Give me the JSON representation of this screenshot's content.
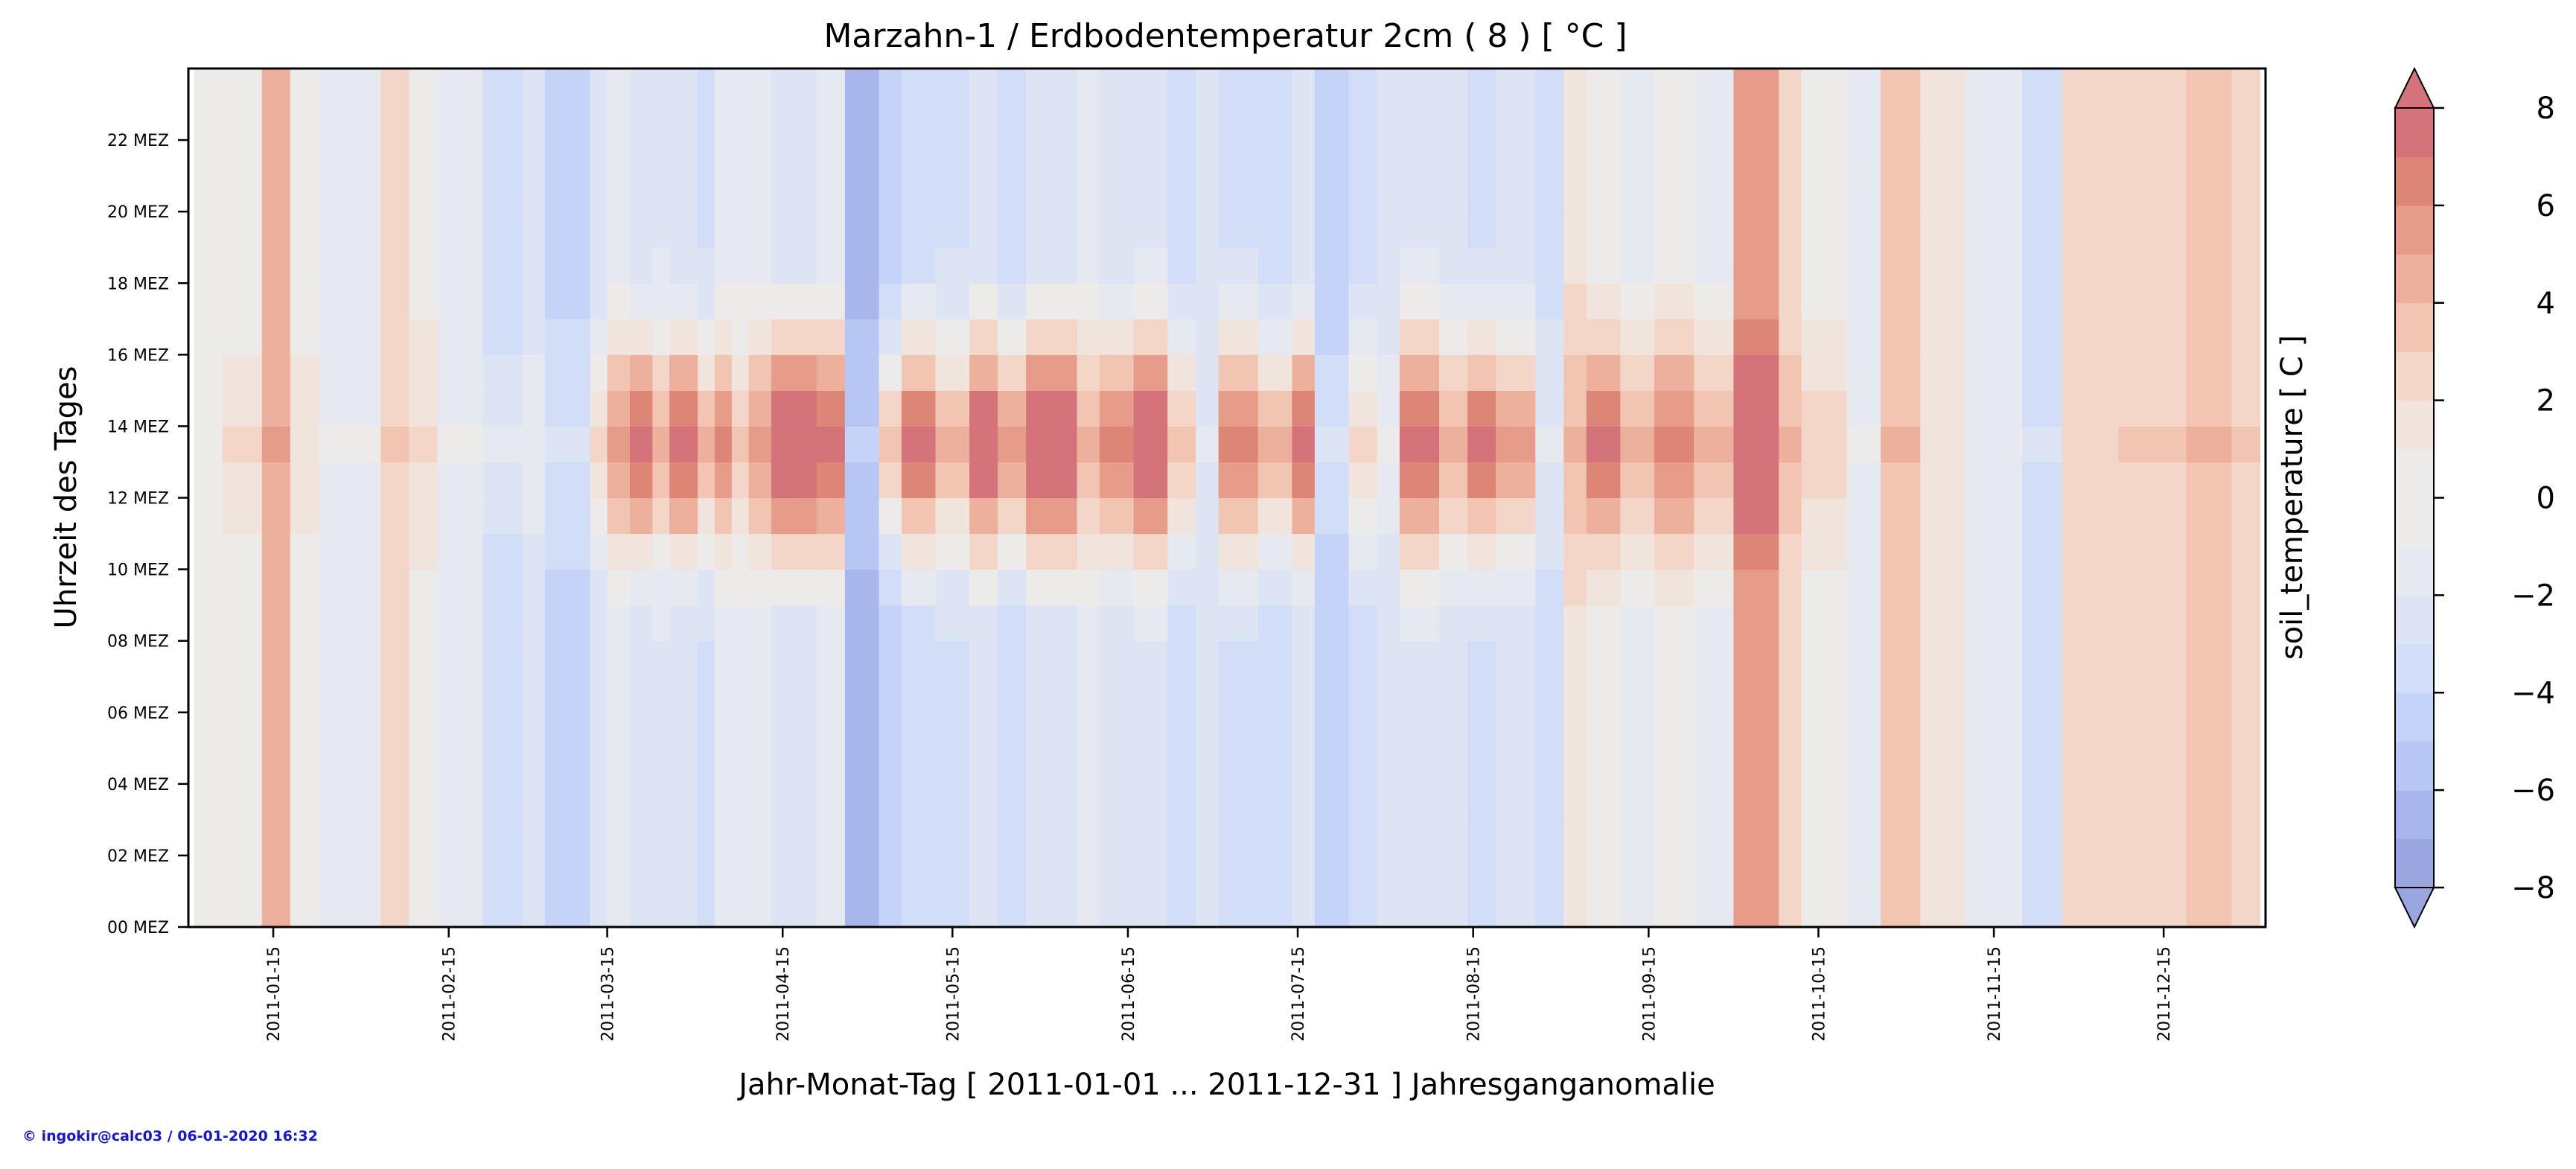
{
  "chart_data": {
    "type": "heatmap",
    "title": "Marzahn-1 / Erdbodentemperatur 2cm ( 8 ) [ °C ]",
    "xlabel": "Jahr-Monat-Tag [ 2011-01-01 ... 2011-12-31 ] Jahresganganomalie",
    "ylabel": "Uhrzeit des Tages",
    "x_ticks": [
      "2011-01-15",
      "2011-02-15",
      "2011-03-15",
      "2011-04-15",
      "2011-05-15",
      "2011-06-15",
      "2011-07-15",
      "2011-08-15",
      "2011-09-15",
      "2011-10-15",
      "2011-11-15",
      "2011-12-15"
    ],
    "x_tick_days": [
      14,
      45,
      73,
      104,
      134,
      165,
      195,
      226,
      257,
      287,
      318,
      348
    ],
    "x_range": [
      -1,
      366
    ],
    "y_ticks": [
      "00 MEZ",
      "02 MEZ",
      "04 MEZ",
      "06 MEZ",
      "08 MEZ",
      "10 MEZ",
      "12 MEZ",
      "14 MEZ",
      "16 MEZ",
      "18 MEZ",
      "20 MEZ",
      "22 MEZ"
    ],
    "y_tick_hours": [
      0,
      2,
      4,
      6,
      8,
      10,
      12,
      14,
      16,
      18,
      20,
      22
    ],
    "y_range": [
      0,
      24
    ],
    "colorbar": {
      "label": "soil_temperature [ C ]",
      "ticks": [
        "8",
        "6",
        "4",
        "2",
        "0",
        "−2",
        "−4",
        "−6",
        "−8"
      ],
      "tick_values": [
        8,
        6,
        4,
        2,
        0,
        -2,
        -4,
        -6,
        -8
      ],
      "range": [
        -8,
        8
      ],
      "levels": [
        -8,
        -7,
        -6,
        -5,
        -4,
        -3,
        -2,
        -1,
        0,
        1,
        2,
        3,
        4,
        5,
        6,
        7,
        8
      ],
      "colors": [
        "#9aa6e0",
        "#a9b6ec",
        "#b8c6f4",
        "#c6d3f8",
        "#d2ddf8",
        "#dde5f4",
        "#e6eaf0",
        "#ecebea",
        "#f1e4dc",
        "#f4d6c8",
        "#f2c4b2",
        "#edb09c",
        "#e69c88",
        "#dd8676",
        "#d4737a"
      ],
      "extend": "both"
    },
    "segments": [
      {
        "start": 0,
        "end": 5,
        "day": -0.5,
        "night": -0.3
      },
      {
        "start": 5,
        "end": 12,
        "day": 1.0,
        "night": -1.0
      },
      {
        "start": 12,
        "end": 17,
        "day": 4.0,
        "night": 3.5
      },
      {
        "start": 17,
        "end": 22,
        "day": 0.5,
        "night": -1.0
      },
      {
        "start": 22,
        "end": 33,
        "day": -1.0,
        "night": -1.5
      },
      {
        "start": 33,
        "end": 38,
        "day": 2.0,
        "night": 1.5
      },
      {
        "start": 38,
        "end": 43,
        "day": 1.0,
        "night": -0.5
      },
      {
        "start": 43,
        "end": 51,
        "day": -1.0,
        "night": -2.0
      },
      {
        "start": 51,
        "end": 58,
        "day": -2.0,
        "night": -4.0
      },
      {
        "start": 58,
        "end": 62,
        "day": -1.5,
        "night": -2.5
      },
      {
        "start": 62,
        "end": 70,
        "day": -3.0,
        "night": -4.5
      },
      {
        "start": 70,
        "end": 73,
        "day": 1.0,
        "night": -3.0
      },
      {
        "start": 73,
        "end": 77,
        "day": 4.0,
        "night": -2.0
      },
      {
        "start": 77,
        "end": 81,
        "day": 6.0,
        "night": -3.0
      },
      {
        "start": 81,
        "end": 84,
        "day": 3.5,
        "night": -2.5
      },
      {
        "start": 84,
        "end": 89,
        "day": 6.0,
        "night": -3.0
      },
      {
        "start": 89,
        "end": 92,
        "day": 3.0,
        "night": -3.5
      },
      {
        "start": 92,
        "end": 95,
        "day": 5.0,
        "night": -2.0
      },
      {
        "start": 95,
        "end": 98,
        "day": 2.0,
        "night": -1.5
      },
      {
        "start": 98,
        "end": 102,
        "day": 4.0,
        "night": -2.0
      },
      {
        "start": 102,
        "end": 110,
        "day": 8.0,
        "night": -3.0
      },
      {
        "start": 110,
        "end": 115,
        "day": 6.0,
        "night": -2.0
      },
      {
        "start": 115,
        "end": 121,
        "day": -5.0,
        "night": -6.5
      },
      {
        "start": 121,
        "end": 125,
        "day": 2.0,
        "night": -5.0
      },
      {
        "start": 125,
        "end": 131,
        "day": 6.0,
        "night": -4.0
      },
      {
        "start": 131,
        "end": 137,
        "day": 3.0,
        "night": -3.5
      },
      {
        "start": 137,
        "end": 142,
        "day": 7.0,
        "night": -3.0
      },
      {
        "start": 142,
        "end": 147,
        "day": 4.0,
        "night": -4.0
      },
      {
        "start": 147,
        "end": 156,
        "day": 8.0,
        "night": -3.0
      },
      {
        "start": 156,
        "end": 160,
        "day": 3.0,
        "night": -2.0
      },
      {
        "start": 160,
        "end": 166,
        "day": 5.0,
        "night": -3.0
      },
      {
        "start": 166,
        "end": 172,
        "day": 8.0,
        "night": -2.5
      },
      {
        "start": 172,
        "end": 177,
        "day": 2.0,
        "night": -4.0
      },
      {
        "start": 177,
        "end": 181,
        "day": -2.0,
        "night": -3.0
      },
      {
        "start": 181,
        "end": 188,
        "day": 5.0,
        "night": -3.5
      },
      {
        "start": 188,
        "end": 194,
        "day": 3.0,
        "night": -4.0
      },
      {
        "start": 194,
        "end": 198,
        "day": 6.0,
        "night": -3.0
      },
      {
        "start": 198,
        "end": 204,
        "day": -3.0,
        "night": -5.0
      },
      {
        "start": 204,
        "end": 209,
        "day": 1.5,
        "night": -4.0
      },
      {
        "start": 209,
        "end": 213,
        "day": -1.0,
        "night": -3.0
      },
      {
        "start": 213,
        "end": 220,
        "day": 6.0,
        "night": -2.5
      },
      {
        "start": 220,
        "end": 225,
        "day": 3.0,
        "night": -3.0
      },
      {
        "start": 225,
        "end": 230,
        "day": 6.0,
        "night": -3.5
      },
      {
        "start": 230,
        "end": 237,
        "day": 4.0,
        "night": -3.0
      },
      {
        "start": 237,
        "end": 242,
        "day": -2.0,
        "night": -3.5
      },
      {
        "start": 242,
        "end": 246,
        "day": 3.0,
        "night": 0.5
      },
      {
        "start": 246,
        "end": 252,
        "day": 6.0,
        "night": -1.0
      },
      {
        "start": 252,
        "end": 258,
        "day": 3.0,
        "night": -2.0
      },
      {
        "start": 258,
        "end": 265,
        "day": 5.0,
        "night": -1.0
      },
      {
        "start": 265,
        "end": 272,
        "day": 3.0,
        "night": -2.0
      },
      {
        "start": 272,
        "end": 280,
        "day": 8.0,
        "night": 4.0
      },
      {
        "start": 280,
        "end": 284,
        "day": 3.0,
        "night": 1.0
      },
      {
        "start": 284,
        "end": 292,
        "day": 1.5,
        "night": -1.0
      },
      {
        "start": 292,
        "end": 298,
        "day": -1.0,
        "night": -2.0
      },
      {
        "start": 298,
        "end": 305,
        "day": 3.0,
        "night": 2.0
      },
      {
        "start": 305,
        "end": 313,
        "day": 0.5,
        "night": 0.0
      },
      {
        "start": 313,
        "end": 323,
        "day": -1.5,
        "night": -2.0
      },
      {
        "start": 323,
        "end": 330,
        "day": -3.0,
        "night": -3.5
      },
      {
        "start": 330,
        "end": 340,
        "day": 1.5,
        "night": 1.0
      },
      {
        "start": 340,
        "end": 352,
        "day": 2.0,
        "night": 1.5
      },
      {
        "start": 352,
        "end": 360,
        "day": 3.0,
        "night": 2.5
      },
      {
        "start": 360,
        "end": 365,
        "day": 2.0,
        "night": 1.5
      }
    ]
  },
  "footer": {
    "credit": "© ingokir@calc03 / 06-01-2020 16:32"
  }
}
